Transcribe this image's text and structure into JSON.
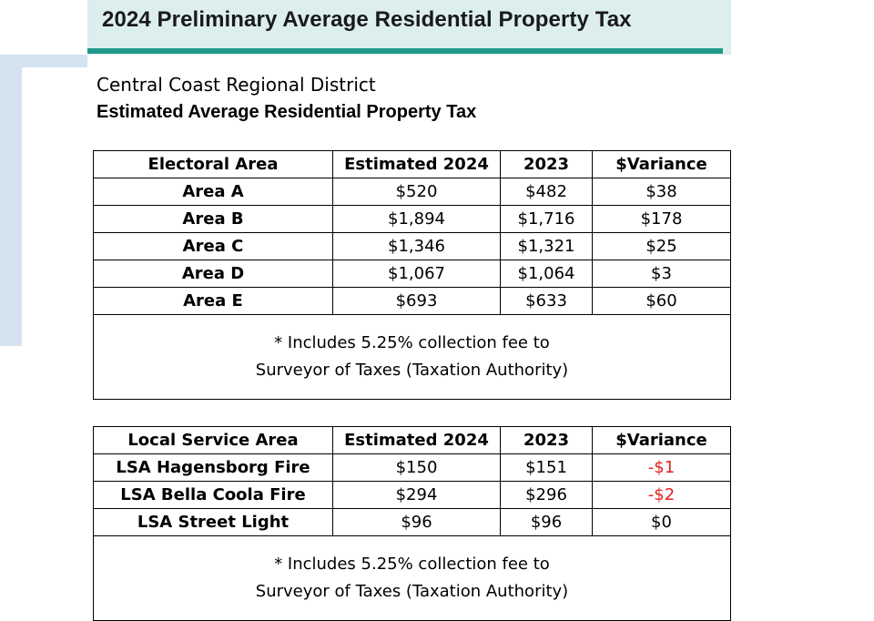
{
  "banner": {
    "title": "2024 Preliminary Average Residential Property Tax"
  },
  "district": "Central Coast Regional District",
  "heading": "Estimated Average Residential Property Tax",
  "electoral": {
    "headers": [
      "Electoral Area",
      "Estimated 2024",
      "2023",
      "$Variance"
    ],
    "rows": [
      [
        "Area A",
        "$520",
        "$482",
        "$38"
      ],
      [
        "Area B",
        "$1,894",
        "$1,716",
        "$178"
      ],
      [
        "Area C",
        "$1,346",
        "$1,321",
        "$25"
      ],
      [
        "Area D",
        "$1,067",
        "$1,064",
        "$3"
      ],
      [
        "Area E",
        "$693",
        "$633",
        "$60"
      ]
    ],
    "note_line1": "* Includes 5.25% collection fee to",
    "note_line2": "Surveyor of Taxes (Taxation Authority)"
  },
  "lsa": {
    "headers": [
      "Local Service Area",
      "Estimated 2024",
      "2023",
      "$Variance"
    ],
    "rows": [
      [
        "LSA Hagensborg Fire",
        "$150",
        "$151",
        "-$1"
      ],
      [
        "LSA Bella Coola Fire",
        "$294",
        "$296",
        "-$2"
      ],
      [
        "LSA Street Light",
        "$96",
        "$96",
        "$0"
      ]
    ],
    "note_line1": "* Includes 5.25% collection fee to",
    "note_line2": "Surveyor of Taxes (Taxation Authority)"
  },
  "colors": {
    "banner_bg": "#dcefee",
    "banner_rule": "#1f9a8a",
    "accent": "#d5e3f0",
    "negative": "#e0201b"
  }
}
